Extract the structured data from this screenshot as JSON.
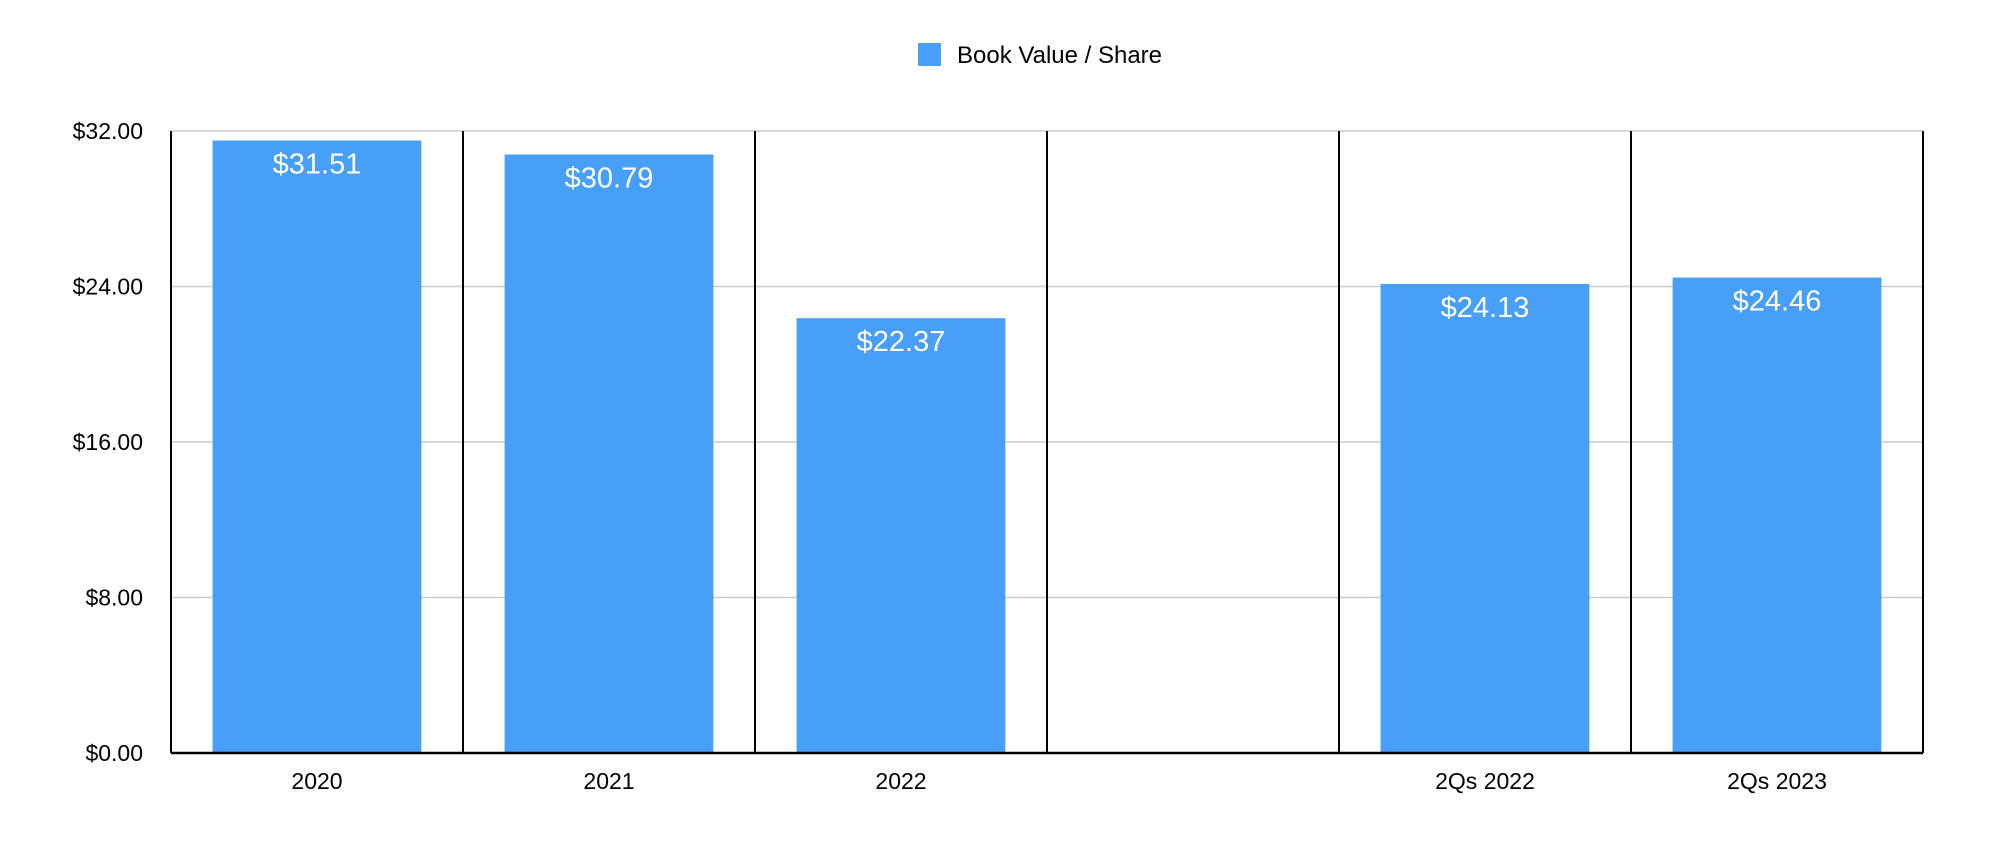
{
  "colors": {
    "bar": "#489ff8",
    "grid": "#cccccc",
    "axis": "#000000",
    "data_label": "#ffffff"
  },
  "chart_data": {
    "type": "bar",
    "categories": [
      "2020",
      "2021",
      "2022",
      "",
      "2Qs 2022",
      "2Qs 2023"
    ],
    "series": [
      {
        "name": "Book Value / Share",
        "values": [
          31.51,
          30.79,
          22.37,
          null,
          24.13,
          24.46
        ],
        "labels": [
          "$31.51",
          "$30.79",
          "$22.37",
          "",
          "$24.13",
          "$24.46"
        ]
      }
    ],
    "y_ticks": [
      0,
      8,
      16,
      24,
      32
    ],
    "y_tick_labels": [
      "$0.00",
      "$8.00",
      "$16.00",
      "$24.00",
      "$32.00"
    ],
    "ylim": [
      0,
      32
    ],
    "title": "",
    "xlabel": "",
    "ylabel": "",
    "legend_position": "top-center",
    "grid": true
  }
}
